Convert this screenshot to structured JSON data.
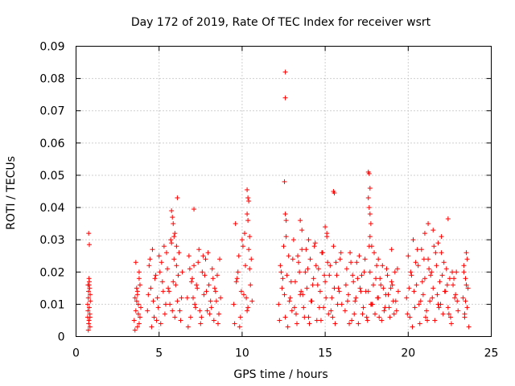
{
  "chart_data": {
    "type": "scatter",
    "title": "Day 172 of 2019, Rate Of TEC Index for receiver wsrt",
    "xlabel": "GPS time / hours",
    "ylabel": "ROTI / TECUs",
    "xlim": [
      0,
      25
    ],
    "ylim": [
      0,
      0.09
    ],
    "xticks": [
      0,
      5,
      10,
      15,
      20,
      25
    ],
    "xtick_labels": [
      "0",
      "5",
      "10",
      "15",
      "20",
      "25"
    ],
    "yticks": [
      0,
      0.01,
      0.02,
      0.03,
      0.04,
      0.05,
      0.06,
      0.07,
      0.08,
      0.09
    ],
    "ytick_labels": [
      "0",
      "0.01",
      "0.02",
      "0.03",
      "0.04",
      "0.05",
      "0.06",
      "0.07",
      "0.08",
      "0.09"
    ],
    "grid": true,
    "marker": "+",
    "color": "#ff0000",
    "series": [
      {
        "name": "ROTI",
        "x": [
          0.7,
          0.72,
          0.74,
          0.76,
          0.78,
          0.8,
          0.82,
          0.84,
          0.86,
          0.72,
          0.75,
          0.78,
          0.8,
          0.83,
          0.85,
          0.7,
          0.74,
          0.79,
          0.84,
          0.76,
          0.8,
          3.5,
          3.55,
          3.6,
          3.65,
          3.7,
          3.75,
          3.8,
          3.85,
          3.6,
          3.7,
          3.8,
          3.9,
          3.55,
          3.65,
          3.75,
          3.85,
          3.7,
          3.8,
          4.3,
          4.4,
          4.5,
          4.6,
          4.7,
          4.8,
          4.9,
          5.0,
          5.1,
          5.2,
          5.3,
          5.4,
          5.5,
          5.6,
          5.7,
          5.8,
          5.9,
          6.0,
          6.1,
          6.2,
          6.3,
          6.4,
          4.35,
          4.55,
          4.75,
          4.95,
          5.15,
          5.35,
          5.55,
          5.75,
          5.95,
          6.15,
          6.35,
          4.45,
          4.65,
          4.85,
          5.05,
          5.25,
          5.45,
          5.65,
          5.85,
          6.05,
          6.25,
          5.75,
          5.85,
          5.95,
          6.1,
          5.8,
          5.9,
          6.05,
          6.7,
          6.8,
          6.9,
          7.0,
          7.1,
          7.2,
          7.3,
          7.4,
          7.5,
          7.6,
          7.7,
          7.8,
          7.9,
          8.0,
          8.1,
          8.2,
          8.3,
          8.4,
          8.5,
          8.6,
          8.7,
          6.75,
          6.95,
          7.15,
          7.35,
          7.55,
          7.75,
          7.95,
          8.15,
          8.35,
          8.55,
          6.85,
          7.05,
          7.25,
          7.45,
          7.65,
          7.85,
          8.05,
          8.25,
          8.45,
          8.65,
          7.1,
          9.5,
          9.6,
          9.7,
          9.8,
          9.9,
          10.0,
          10.1,
          10.2,
          10.3,
          10.4,
          10.5,
          10.6,
          9.55,
          9.75,
          9.95,
          10.15,
          10.35,
          10.55,
          9.65,
          9.85,
          10.05,
          10.25,
          10.45,
          10.3,
          10.35,
          10.4,
          10.3,
          10.35,
          10.45,
          12.2,
          12.3,
          12.4,
          12.5,
          12.6,
          12.7,
          12.8,
          12.9,
          13.0,
          13.1,
          13.2,
          13.3,
          13.4,
          13.5,
          13.6,
          13.7,
          13.8,
          13.9,
          14.0,
          14.1,
          14.2,
          14.3,
          14.4,
          14.5,
          14.6,
          14.7,
          14.8,
          14.9,
          15.0,
          15.1,
          15.2,
          15.3,
          15.4,
          15.5,
          15.6,
          15.7,
          15.8,
          15.9,
          16.0,
          12.25,
          12.45,
          12.65,
          12.85,
          13.05,
          13.25,
          13.45,
          13.65,
          13.85,
          14.05,
          14.25,
          14.45,
          14.65,
          14.85,
          15.05,
          15.25,
          15.45,
          15.65,
          15.85,
          12.35,
          12.55,
          12.75,
          12.95,
          13.15,
          13.35,
          13.55,
          13.75,
          13.95,
          14.15,
          14.35,
          14.55,
          14.75,
          14.95,
          15.15,
          15.35,
          15.55,
          15.75,
          15.95,
          12.6,
          12.6,
          12.55,
          12.6,
          12.65,
          15.5,
          15.55,
          13.5,
          13.6,
          14.0,
          15.0,
          15.1,
          16.2,
          16.3,
          16.4,
          16.5,
          16.6,
          16.7,
          16.8,
          16.9,
          17.0,
          17.1,
          17.2,
          17.3,
          17.4,
          17.5,
          17.6,
          17.7,
          17.8,
          17.9,
          18.0,
          18.1,
          18.2,
          18.3,
          18.4,
          18.5,
          18.6,
          18.7,
          18.8,
          18.9,
          19.0,
          19.1,
          19.2,
          19.3,
          19.4,
          16.25,
          16.45,
          16.65,
          16.85,
          17.05,
          17.25,
          17.45,
          17.65,
          17.85,
          18.05,
          18.25,
          18.45,
          18.65,
          18.85,
          19.05,
          19.25,
          16.35,
          16.55,
          16.75,
          16.95,
          17.15,
          17.35,
          17.55,
          17.75,
          17.95,
          18.15,
          18.35,
          18.55,
          18.75,
          18.95,
          19.15,
          19.35,
          17.6,
          17.65,
          17.7,
          17.6,
          17.65,
          17.7,
          17.75,
          17.7,
          18.2,
          19.0,
          17.8,
          19.9,
          20.0,
          20.1,
          20.2,
          20.3,
          20.4,
          20.5,
          20.6,
          20.7,
          20.8,
          20.9,
          21.0,
          21.1,
          21.2,
          21.3,
          21.4,
          21.5,
          21.6,
          21.7,
          21.8,
          21.9,
          22.0,
          22.1,
          22.2,
          22.3,
          22.4,
          22.5,
          22.6,
          22.7,
          22.8,
          22.9,
          23.0,
          19.95,
          20.15,
          20.35,
          20.55,
          20.75,
          20.95,
          21.15,
          21.35,
          21.55,
          21.75,
          21.95,
          22.15,
          22.35,
          22.55,
          22.75,
          22.95,
          20.05,
          20.25,
          20.45,
          20.65,
          20.85,
          21.05,
          21.25,
          21.45,
          21.65,
          21.85,
          22.05,
          22.25,
          22.45,
          22.65,
          22.85,
          21.0,
          21.2,
          21.5,
          22.0,
          22.4,
          21.8,
          23.3,
          23.35,
          23.4,
          23.45,
          23.5,
          23.55,
          23.6,
          23.65,
          23.35,
          23.45,
          23.55,
          23.4,
          23.5
        ],
        "y": [
          0.006,
          0.016,
          0.012,
          0.004,
          0.018,
          0.009,
          0.015,
          0.003,
          0.011,
          0.008,
          0.014,
          0.005,
          0.017,
          0.007,
          0.013,
          0.01,
          0.002,
          0.016,
          0.006,
          0.032,
          0.0285,
          0.005,
          0.012,
          0.008,
          0.015,
          0.003,
          0.01,
          0.018,
          0.006,
          0.023,
          0.014,
          0.02,
          0.009,
          0.002,
          0.011,
          0.007,
          0.016,
          0.013,
          0.004,
          0.008,
          0.022,
          0.015,
          0.027,
          0.006,
          0.019,
          0.012,
          0.025,
          0.004,
          0.017,
          0.028,
          0.01,
          0.021,
          0.014,
          0.03,
          0.008,
          0.024,
          0.016,
          0.011,
          0.026,
          0.005,
          0.02,
          0.013,
          0.003,
          0.018,
          0.009,
          0.023,
          0.007,
          0.015,
          0.029,
          0.006,
          0.019,
          0.012,
          0.024,
          0.011,
          0.005,
          0.02,
          0.014,
          0.026,
          0.01,
          0.017,
          0.022,
          0.008,
          0.039,
          0.035,
          0.032,
          0.043,
          0.037,
          0.031,
          0.028,
          0.012,
          0.025,
          0.006,
          0.018,
          0.022,
          0.009,
          0.015,
          0.027,
          0.004,
          0.02,
          0.013,
          0.024,
          0.008,
          0.016,
          0.011,
          0.021,
          0.005,
          0.014,
          0.019,
          0.007,
          0.012,
          0.003,
          0.017,
          0.01,
          0.023,
          0.006,
          0.019,
          0.026,
          0.009,
          0.015,
          0.004,
          0.021,
          0.012,
          0.016,
          0.008,
          0.025,
          0.014,
          0.007,
          0.018,
          0.011,
          0.024,
          0.0395,
          0.01,
          0.035,
          0.018,
          0.025,
          0.006,
          0.03,
          0.013,
          0.022,
          0.008,
          0.027,
          0.016,
          0.011,
          0.004,
          0.02,
          0.014,
          0.032,
          0.009,
          0.024,
          0.017,
          0.003,
          0.028,
          0.012,
          0.021,
          0.0455,
          0.043,
          0.042,
          0.038,
          0.036,
          0.031,
          0.01,
          0.022,
          0.015,
          0.028,
          0.006,
          0.019,
          0.025,
          0.012,
          0.008,
          0.03,
          0.017,
          0.004,
          0.023,
          0.013,
          0.027,
          0.009,
          0.02,
          0.015,
          0.006,
          0.024,
          0.011,
          0.018,
          0.029,
          0.005,
          0.021,
          0.014,
          0.026,
          0.009,
          0.017,
          0.031,
          0.007,
          0.022,
          0.012,
          0.028,
          0.004,
          0.019,
          0.015,
          0.024,
          0.01,
          0.005,
          0.018,
          0.031,
          0.011,
          0.024,
          0.007,
          0.02,
          0.013,
          0.027,
          0.004,
          0.016,
          0.022,
          0.009,
          0.026,
          0.012,
          0.019,
          0.006,
          0.023,
          0.014,
          0.02,
          0.013,
          0.003,
          0.017,
          0.009,
          0.025,
          0.014,
          0.006,
          0.021,
          0.011,
          0.028,
          0.016,
          0.005,
          0.019,
          0.023,
          0.008,
          0.015,
          0.01,
          0.026,
          0.082,
          0.074,
          0.048,
          0.038,
          0.036,
          0.045,
          0.0445,
          0.036,
          0.033,
          0.03,
          0.034,
          0.032,
          0.008,
          0.021,
          0.013,
          0.026,
          0.005,
          0.017,
          0.011,
          0.023,
          0.004,
          0.015,
          0.019,
          0.009,
          0.024,
          0.006,
          0.014,
          0.02,
          0.01,
          0.016,
          0.007,
          0.022,
          0.012,
          0.018,
          0.005,
          0.015,
          0.009,
          0.021,
          0.013,
          0.006,
          0.017,
          0.011,
          0.02,
          0.008,
          0.014,
          0.016,
          0.004,
          0.019,
          0.012,
          0.025,
          0.007,
          0.014,
          0.028,
          0.01,
          0.018,
          0.006,
          0.022,
          0.013,
          0.009,
          0.016,
          0.011,
          0.011,
          0.023,
          0.007,
          0.018,
          0.014,
          0.02,
          0.005,
          0.01,
          0.026,
          0.012,
          0.016,
          0.008,
          0.019,
          0.015,
          0.007,
          0.021,
          0.051,
          0.0505,
          0.046,
          0.043,
          0.04,
          0.038,
          0.035,
          0.031,
          0.024,
          0.027,
          0.028,
          0.012,
          0.025,
          0.006,
          0.019,
          0.03,
          0.009,
          0.016,
          0.022,
          0.004,
          0.027,
          0.013,
          0.018,
          0.008,
          0.024,
          0.011,
          0.02,
          0.015,
          0.005,
          0.022,
          0.01,
          0.017,
          0.026,
          0.007,
          0.014,
          0.021,
          0.009,
          0.018,
          0.004,
          0.016,
          0.012,
          0.02,
          0.008,
          0.007,
          0.02,
          0.014,
          0.027,
          0.011,
          0.024,
          0.005,
          0.019,
          0.028,
          0.013,
          0.01,
          0.023,
          0.016,
          0.006,
          0.018,
          0.011,
          0.015,
          0.003,
          0.023,
          0.01,
          0.017,
          0.006,
          0.021,
          0.012,
          0.026,
          0.009,
          0.019,
          0.014,
          0.007,
          0.02,
          0.013,
          0.032,
          0.035,
          0.033,
          0.031,
          0.0365,
          0.029,
          0.012,
          0.022,
          0.006,
          0.018,
          0.026,
          0.009,
          0.015,
          0.003,
          0.02,
          0.011,
          0.024,
          0.007,
          0.016
        ]
      }
    ]
  }
}
